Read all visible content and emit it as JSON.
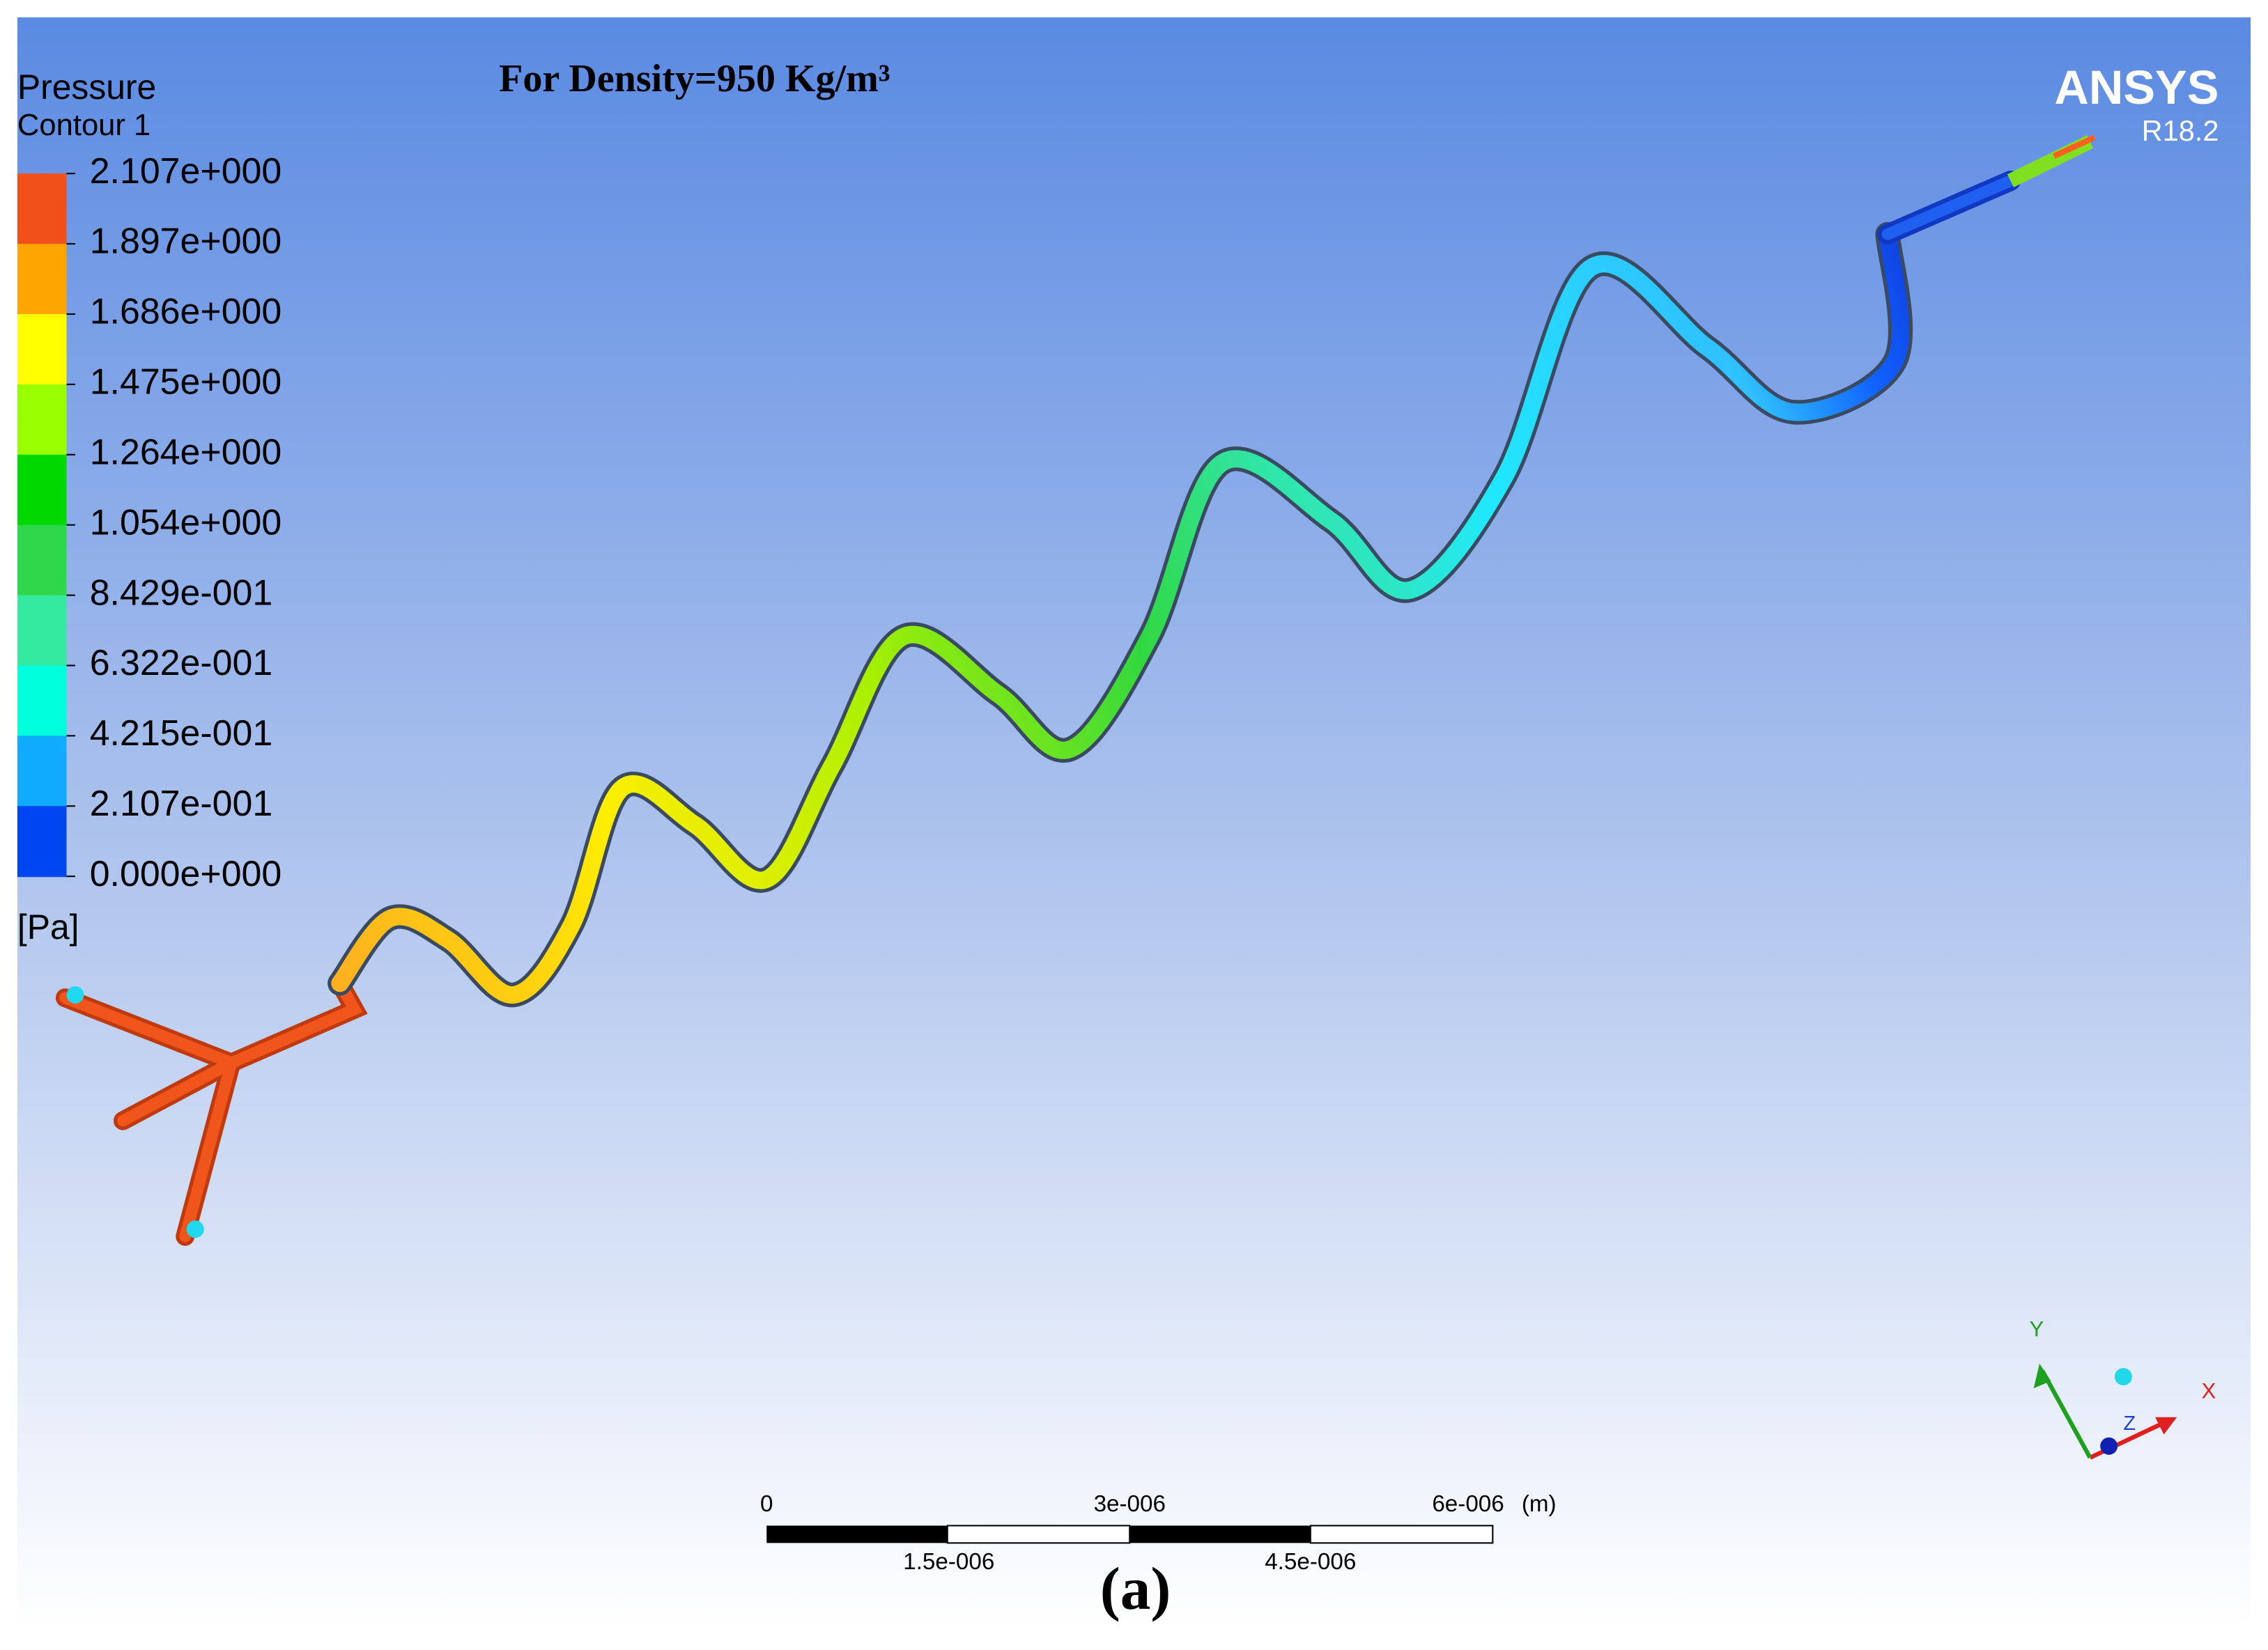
{
  "header": {
    "title": "For Density=950 Kg/m³",
    "brand": "ANSYS",
    "version": "R18.2"
  },
  "legend": {
    "title": "Pressure",
    "subtitle": "Contour 1",
    "unit": "[Pa]",
    "levels": [
      "2.107e+000",
      "1.897e+000",
      "1.686e+000",
      "1.475e+000",
      "1.264e+000",
      "1.054e+000",
      "8.429e-001",
      "6.322e-001",
      "4.215e-001",
      "2.107e-001",
      "0.000e+000"
    ],
    "colors": [
      "#f2501a",
      "#ffa500",
      "#ffff00",
      "#99ff00",
      "#00d800",
      "#2ed84a",
      "#33eaa0",
      "#00ffdd",
      "#10aaff",
      "#0046f0"
    ]
  },
  "scale_bar": {
    "labels": [
      "0",
      "3e-006",
      "6e-006"
    ],
    "unit": "(m)",
    "sub_labels": [
      "1.5e-006",
      "4.5e-006"
    ]
  },
  "axes": {
    "x": "X",
    "y": "Y",
    "z": "Z"
  },
  "caption": "(a)"
}
